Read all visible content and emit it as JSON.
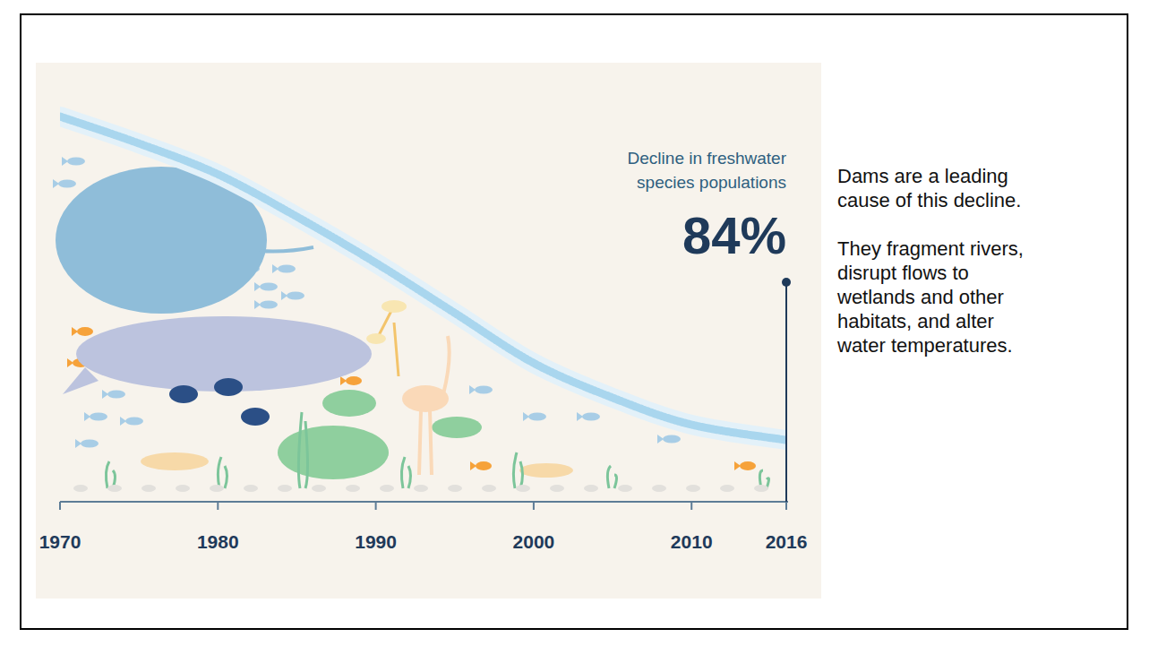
{
  "chart_data": {
    "type": "area",
    "x": [
      1970,
      1975,
      1980,
      1985,
      1990,
      1995,
      2000,
      2005,
      2010,
      2016
    ],
    "values": [
      100,
      93,
      85,
      74,
      62,
      49,
      36,
      27,
      20,
      16
    ],
    "xlim": [
      1970,
      2016
    ],
    "ylim": [
      0,
      100
    ],
    "xticks": [
      1970,
      1980,
      1990,
      2000,
      2010,
      2016
    ],
    "tick_labels": "x",
    "grid": false,
    "color": "#a9d6ee",
    "annotation": {
      "x": 2016,
      "title": "Decline in freshwater species populations",
      "label": "84%"
    }
  },
  "notes": [
    "Dams are a leading cause of this decline.",
    "They fragment rivers, disrupt flows to wetlands and other habitats, and alter water temperatures."
  ]
}
